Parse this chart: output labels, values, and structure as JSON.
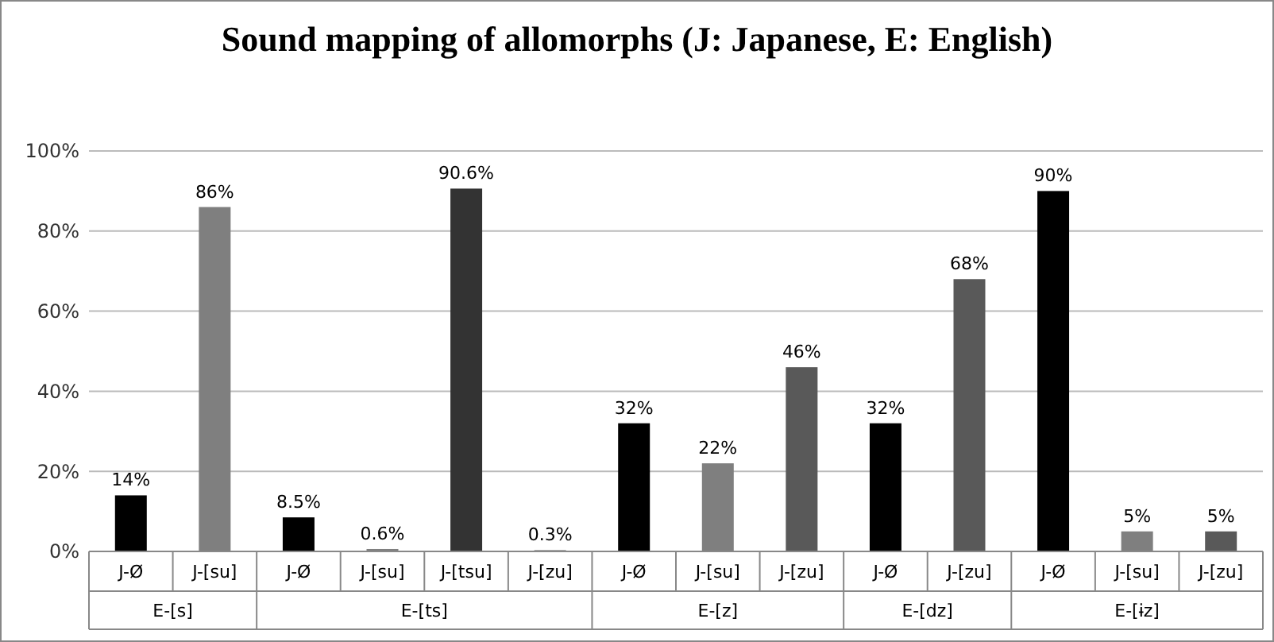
{
  "chart_data": {
    "type": "bar",
    "title": "Sound mapping of allomorphs (J: Japanese, E: English)",
    "categories": [
      "J-Ø",
      "J-[su]",
      "J-Ø",
      "J-[su]",
      "J-[tsu]",
      "J-[zu]",
      "J-Ø",
      "J-[su]",
      "J-[zu]",
      "J-Ø",
      "J-[zu]",
      "J-Ø",
      "J-[su]",
      "J-[zu]"
    ],
    "values": [
      14,
      86,
      8.5,
      0.6,
      90.6,
      0.3,
      32,
      22,
      46,
      32,
      68,
      90,
      5,
      5
    ],
    "value_labels": [
      "14%",
      "86%",
      "8.5%",
      "0.6%",
      "90.6%",
      "0.3%",
      "32%",
      "22%",
      "46%",
      "32%",
      "68%",
      "90%",
      "5%",
      "5%"
    ],
    "colors": [
      "#000000",
      "#7f7f7f",
      "#000000",
      "#7f7f7f",
      "#333333",
      "#595959",
      "#000000",
      "#7f7f7f",
      "#595959",
      "#000000",
      "#595959",
      "#000000",
      "#7f7f7f",
      "#595959"
    ],
    "annotations": [
      "E-[s]",
      "E-[ts]",
      "E-[z]",
      "E-[dz]",
      "E-[ɨz]"
    ],
    "ylim": [
      0,
      100
    ],
    "yticks": [
      {
        "value": 0,
        "label": "0%"
      },
      {
        "value": 20,
        "label": "20%"
      },
      {
        "value": 40,
        "label": "40%"
      },
      {
        "value": 60,
        "label": "60%"
      },
      {
        "value": 80,
        "label": "80%"
      },
      {
        "value": 100,
        "label": "100%"
      }
    ],
    "grid": "y"
  }
}
